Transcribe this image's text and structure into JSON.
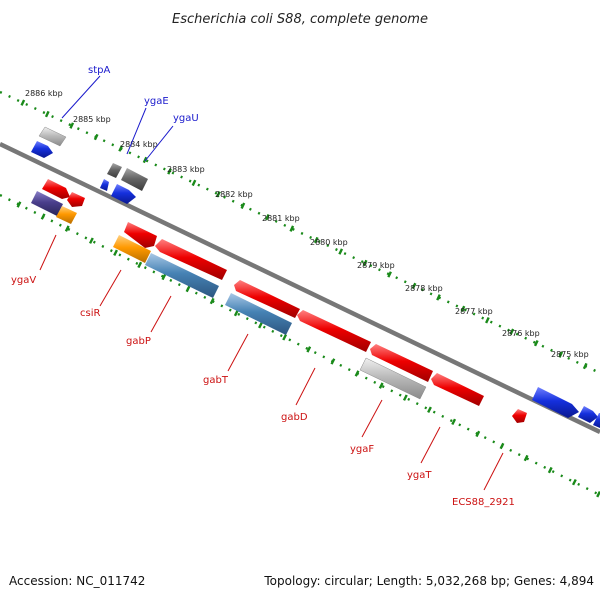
{
  "title": "Escherichia coli S88, complete genome",
  "footer": {
    "accession": "Accession: NC_011742",
    "topology": "Topology: circular; Length: 5,032,268 bp; Genes: 4,894"
  },
  "colors": {
    "backbone": "#777777",
    "tick": "#1a8a1a",
    "forward_label": "#1a1acc",
    "reverse_label": "#cc1111",
    "red": "#ee0000",
    "blue": "#1530dd",
    "steelblue": "#4682b4",
    "orange": "#ff9900",
    "gray": "#bbbbbb",
    "darkgray": "#666666",
    "purple": "#4a3f8c"
  },
  "ticks": [
    "2886 kbp",
    "2885 kbp",
    "2884 kbp",
    "2883 kbp",
    "2882 kbp",
    "2881 kbp",
    "2880 kbp",
    "2879 kbp",
    "2878 kbp",
    "2877 kbp",
    "2876 kbp",
    "2875 kbp"
  ],
  "forward_labels": [
    "stpA",
    "ygaE",
    "ygaU"
  ],
  "reverse_labels": [
    "ygaV",
    "csiR",
    "gabP",
    "gabT",
    "gabD",
    "ygaF",
    "ygaT",
    "ECS88_2921"
  ]
}
